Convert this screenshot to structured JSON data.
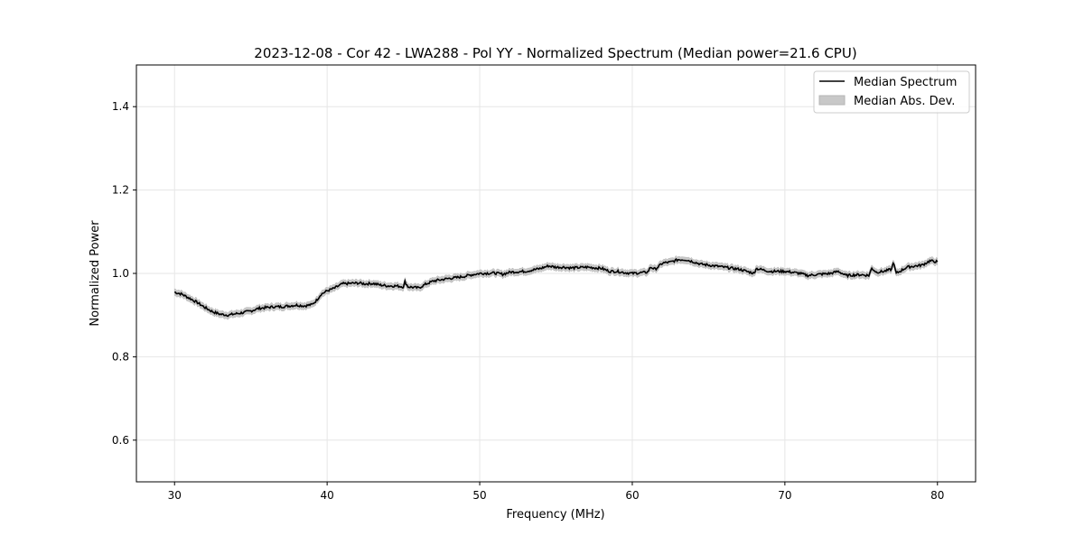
{
  "chart_data": {
    "type": "line",
    "title": "2023-12-08 - Cor 42 - LWA288 - Pol YY - Normalized Spectrum (Median power=21.6 CPU)",
    "xlabel": "Frequency (MHz)",
    "ylabel": "Normalized Power",
    "xlim": [
      27.5,
      82.5
    ],
    "ylim": [
      0.5,
      1.5
    ],
    "xticks": [
      30,
      40,
      50,
      60,
      70,
      80
    ],
    "yticks": [
      0.6,
      0.8,
      1.0,
      1.2,
      1.4
    ],
    "xtick_labels": [
      "30",
      "40",
      "50",
      "60",
      "70",
      "80"
    ],
    "ytick_labels": [
      "0.6",
      "0.8",
      "1.0",
      "1.2",
      "1.4"
    ],
    "grid": true,
    "legend_placement": "top-right",
    "legend": [
      "Median Spectrum",
      "Median Abs. Dev."
    ],
    "colors": {
      "line": "#000000",
      "band": "#c8c8c8",
      "grid": "#e6e6e6"
    },
    "mad": 0.008,
    "series": [
      {
        "name": "Median Spectrum",
        "x": [
          30,
          30.5,
          31,
          31.5,
          32,
          32.5,
          33,
          33.5,
          34,
          34.5,
          35,
          35.5,
          36,
          36.5,
          37,
          37.5,
          38,
          38.5,
          39,
          39.3,
          39.6,
          40,
          40.5,
          41,
          41.5,
          42,
          42.5,
          43,
          43.5,
          44,
          44.5,
          45,
          45.1,
          45.3,
          46,
          46.5,
          47,
          47.5,
          48,
          48.5,
          49,
          49.5,
          50,
          51,
          51.5,
          52,
          53,
          54,
          54.5,
          55,
          55.5,
          56,
          57,
          58,
          58.5,
          59,
          59.5,
          60,
          61,
          61.2,
          61.5,
          62,
          62.5,
          63,
          63.5,
          64,
          64.5,
          65,
          66,
          67,
          68,
          68.1,
          69,
          70,
          71,
          71.5,
          72,
          73,
          73.5,
          74,
          75,
          75.5,
          75.7,
          76,
          76.5,
          77,
          77.1,
          77.3,
          78,
          79,
          79.5,
          80
        ],
        "y": [
          0.955,
          0.95,
          0.94,
          0.93,
          0.918,
          0.908,
          0.902,
          0.9,
          0.903,
          0.906,
          0.91,
          0.916,
          0.918,
          0.92,
          0.92,
          0.922,
          0.924,
          0.922,
          0.925,
          0.935,
          0.95,
          0.958,
          0.965,
          0.975,
          0.976,
          0.977,
          0.975,
          0.976,
          0.972,
          0.97,
          0.97,
          0.968,
          0.98,
          0.968,
          0.965,
          0.975,
          0.982,
          0.985,
          0.988,
          0.99,
          0.993,
          0.997,
          1.0,
          1.001,
          0.998,
          1.003,
          1.005,
          1.012,
          1.018,
          1.015,
          1.015,
          1.013,
          1.015,
          1.012,
          1.005,
          1.005,
          1.002,
          1.0,
          1.003,
          1.015,
          1.01,
          1.025,
          1.027,
          1.033,
          1.033,
          1.028,
          1.022,
          1.02,
          1.015,
          1.01,
          1.0,
          1.012,
          1.005,
          1.005,
          1.0,
          0.995,
          0.997,
          1.0,
          1.005,
          0.995,
          0.997,
          0.995,
          1.012,
          1.003,
          1.005,
          1.01,
          1.027,
          1.0,
          1.015,
          1.02,
          1.03,
          1.028
        ]
      }
    ]
  }
}
